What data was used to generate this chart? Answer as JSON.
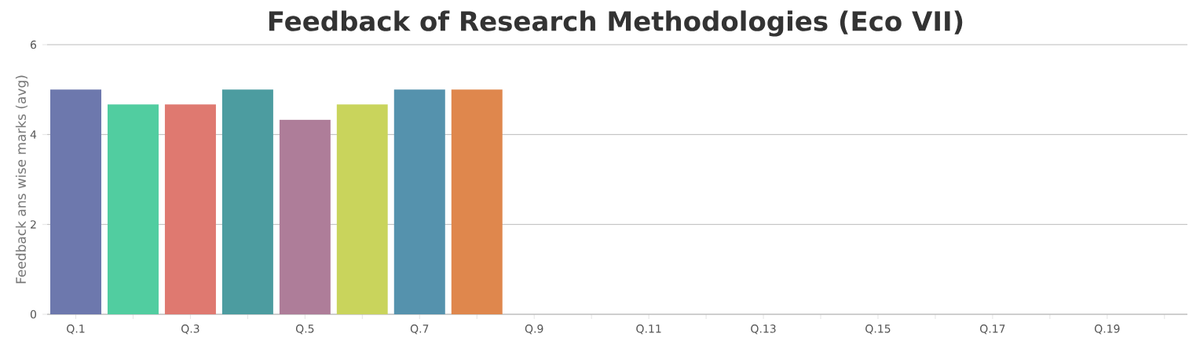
{
  "chart_data": {
    "type": "bar",
    "title": "Feedback of Research Methodologies (Eco VII)",
    "ylabel": "Feedback ans wise marks (avg)",
    "categories": [
      "Q.1",
      null,
      "Q.3",
      null,
      "Q.5",
      null,
      "Q.7",
      null,
      "Q.9",
      null,
      "Q.11",
      null,
      "Q.13",
      null,
      "Q.15",
      null,
      "Q.17",
      null,
      "Q.19",
      null
    ],
    "values": [
      5,
      4.67,
      4.67,
      5,
      4.33,
      4.67,
      5,
      5,
      null,
      null,
      null,
      null,
      null,
      null,
      null,
      null,
      null,
      null,
      null,
      null
    ],
    "colors": [
      "#6d78ad",
      "#51cda0",
      "#df7970",
      "#4c9ca0",
      "#ae7d99",
      "#c9d45c",
      "#5592ad",
      "#df874d",
      null,
      null,
      null,
      null,
      null,
      null,
      null,
      null,
      null,
      null,
      null,
      null
    ],
    "ylim": [
      0,
      6
    ],
    "yticks": [
      0,
      2,
      4,
      6
    ],
    "grid": "y"
  }
}
